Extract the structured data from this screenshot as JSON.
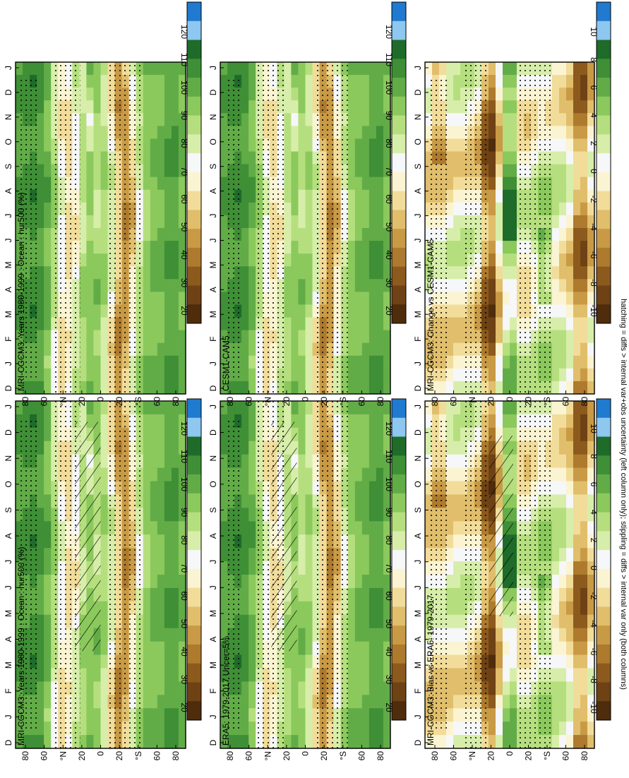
{
  "figure": {
    "footnote": "hatching = diffs > internal var+obs uncertainty (left column only); stippling = diffs > internal var only (both columns)"
  },
  "palettes": {
    "absolute": [
      "#1f7ad0",
      "#8ec7f0",
      "#1e6b2a",
      "#3f8f36",
      "#62ac48",
      "#8bc95c",
      "#b5df7e",
      "#d7eeaa",
      "#f6f7f9",
      "#fbf4d2",
      "#f2dc9a",
      "#e0be6b",
      "#c99a45",
      "#ad7a2e",
      "#8c5a1d",
      "#6e4214",
      "#4e2c0c"
    ],
    "difference": [
      "#1f7ad0",
      "#8ec7f0",
      "#1e6b2a",
      "#3f8f36",
      "#62ac48",
      "#8bc95c",
      "#b5df7e",
      "#d7eeaa",
      "#f6f7f9",
      "#fbf4d2",
      "#f2dc9a",
      "#e0be6b",
      "#c99a45",
      "#ad7a2e",
      "#8c5a1d",
      "#6e4214",
      "#4e2c0c"
    ]
  },
  "chart_data": [
    {
      "type": "heatmap",
      "title": "MRI-CGCM3: Years 1980-1999 : Ocean : hur500 (%)",
      "x_ticks": [
        "D",
        "J",
        "F",
        "M",
        "A",
        "M",
        "J",
        "J",
        "A",
        "S",
        "O",
        "N",
        "D",
        "J"
      ],
      "y_ticks": [
        "80",
        "60",
        "°N",
        "20",
        "0",
        "20",
        "°S",
        "60",
        "80"
      ],
      "colorbar_labels": [
        "120",
        "110",
        "100",
        "90",
        "80",
        "70",
        "60",
        "50",
        "40",
        "30",
        "20"
      ],
      "palette": "absolute",
      "hatch_band": [
        0.35,
        0.5
      ],
      "hatch_months": [
        0.06,
        0.72
      ]
    },
    {
      "type": "heatmap",
      "title": "ERA5: 1979-2017 Uncer=5%",
      "x_ticks": [
        "D",
        "J",
        "F",
        "M",
        "A",
        "M",
        "J",
        "J",
        "A",
        "S",
        "O",
        "N",
        "D",
        "J"
      ],
      "y_ticks": [
        "80",
        "60",
        "°N",
        "20",
        "0",
        "20",
        "°S",
        "60",
        "80"
      ],
      "colorbar_labels": [
        "120",
        "110",
        "100",
        "90",
        "80",
        "70",
        "60",
        "50",
        "40",
        "30",
        "20"
      ],
      "palette": "absolute",
      "hatch_band": [
        0.3,
        0.45
      ],
      "hatch_months": [
        0.06,
        0.72
      ]
    },
    {
      "type": "heatmap",
      "title": "MRI-CGCM3: Bias vs ERA5: 1979-2017",
      "x_ticks": [
        "D",
        "J",
        "F",
        "M",
        "A",
        "M",
        "J",
        "J",
        "A",
        "S",
        "O",
        "N",
        "D",
        "J"
      ],
      "y_ticks": [
        "80",
        "60",
        "°N",
        "20",
        "0",
        "20",
        "°S",
        "60",
        "80"
      ],
      "colorbar_labels": [
        "10",
        "8",
        "6",
        "4",
        "2",
        "0",
        "-2",
        "-4",
        "-6",
        "-8",
        "-10"
      ],
      "palette": "difference",
      "hatch_band": [
        0.38,
        0.52
      ],
      "hatch_months": [
        0.1,
        0.62
      ]
    },
    {
      "type": "heatmap",
      "title": "MRI-CGCM3: Years 1980-1999 : Ocean : hur500 (%)",
      "x_ticks": [
        "D",
        "J",
        "F",
        "M",
        "A",
        "M",
        "J",
        "J",
        "A",
        "S",
        "O",
        "N",
        "D",
        "J"
      ],
      "y_ticks": [
        "80",
        "60",
        "°N",
        "20",
        "0",
        "20",
        "°S",
        "60",
        "80"
      ],
      "colorbar_labels": [
        "120",
        "110",
        "100",
        "90",
        "80",
        "70",
        "60",
        "50",
        "40",
        "30",
        "20"
      ],
      "palette": "absolute",
      "hatch_band": null,
      "hatch_months": null
    },
    {
      "type": "heatmap",
      "title": "CESM1-CAM5",
      "x_ticks": [
        "D",
        "J",
        "F",
        "M",
        "A",
        "M",
        "J",
        "J",
        "A",
        "S",
        "O",
        "N",
        "D",
        "J"
      ],
      "y_ticks": [
        "80",
        "60",
        "°N",
        "20",
        "0",
        "20",
        "°S",
        "60",
        "80"
      ],
      "colorbar_labels": [
        "120",
        "110",
        "100",
        "90",
        "80",
        "70",
        "60",
        "50",
        "40",
        "30",
        "20"
      ],
      "palette": "absolute",
      "hatch_band": null,
      "hatch_months": null
    },
    {
      "type": "heatmap",
      "title": "MRI-CGCM3: Change vs CESM1-CAM5",
      "x_ticks": [
        "D",
        "J",
        "F",
        "M",
        "A",
        "M",
        "J",
        "J",
        "A",
        "S",
        "O",
        "N",
        "D",
        "J"
      ],
      "y_ticks": [
        "80",
        "60",
        "°N",
        "20",
        "0",
        "20",
        "°S",
        "60",
        "80"
      ],
      "colorbar_labels": [
        "10",
        "8",
        "6",
        "4",
        "2",
        "0",
        "-2",
        "-4",
        "-6",
        "-8",
        "-10"
      ],
      "palette": "difference",
      "hatch_band": null,
      "hatch_months": null
    }
  ]
}
